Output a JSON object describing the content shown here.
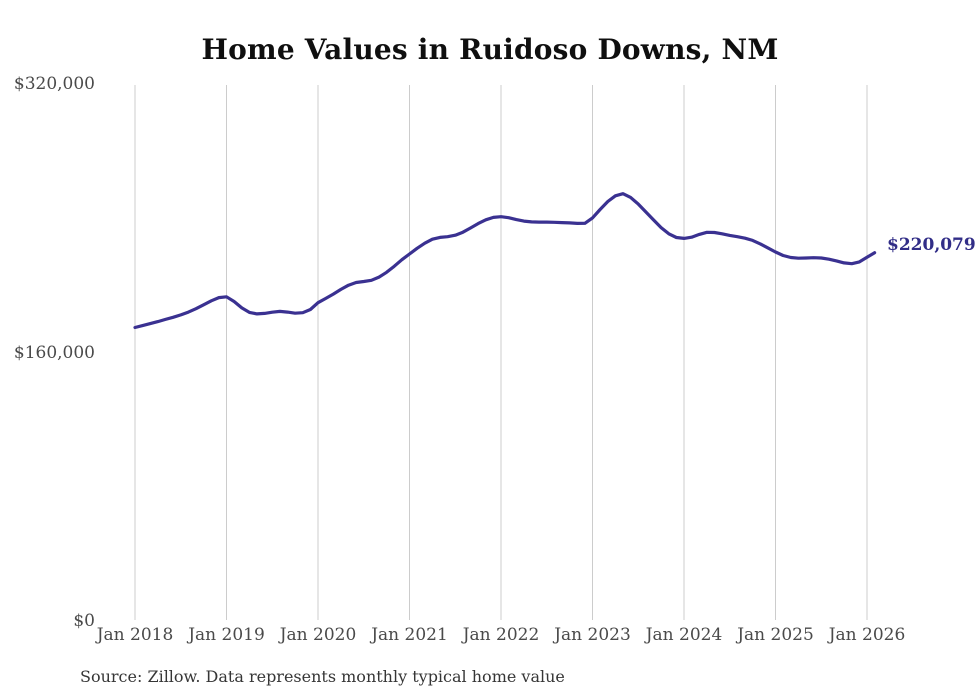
{
  "title": "Home Values in Ruidoso Downs, NM",
  "source_note": "Source: Zillow. Data represents monthly typical home value",
  "end_label": "$220,079",
  "colors": {
    "line": "#3a3191",
    "end_label": "#312d87",
    "gridline": "#cccccc",
    "title_text": "#0f0f0f",
    "axis_text": "#4a4a4a",
    "source_text": "#363636",
    "background": "#ffffff"
  },
  "chart_data": {
    "type": "line",
    "title": "Home Values in Ruidoso Downs, NM",
    "xlabel": "",
    "ylabel": "",
    "ylim": [
      0,
      320000
    ],
    "grid": "vertical-gridlines-only",
    "legend": "none",
    "y_tick_labels": [
      "$0",
      "$160,000",
      "$320,000"
    ],
    "y_tick_values": [
      0,
      160000,
      320000
    ],
    "x_tick_labels": [
      "Jan 2018",
      "Jan 2019",
      "Jan 2020",
      "Jan 2021",
      "Jan 2022",
      "Jan 2023",
      "Jan 2024",
      "Jan 2025",
      "Jan 2026"
    ],
    "series": [
      {
        "name": "Monthly typical home value",
        "frequency": "monthly",
        "start_month": "Jan 2018",
        "end_month": "Feb 2026",
        "final_value": 220079,
        "final_value_label": "$220,079",
        "values": [
          175500,
          176600,
          177800,
          179000,
          180300,
          181600,
          183000,
          184700,
          186700,
          189000,
          191400,
          193300,
          193800,
          191000,
          187200,
          184500,
          183600,
          183900,
          184600,
          185100,
          184700,
          184000,
          184300,
          186200,
          190300,
          192800,
          195400,
          198200,
          200700,
          202300,
          202900,
          203600,
          205500,
          208400,
          212000,
          215900,
          219300,
          222700,
          225700,
          228100,
          229200,
          229600,
          230500,
          232300,
          234800,
          237400,
          239700,
          241100,
          241500,
          240900,
          239800,
          238900,
          238400,
          238300,
          238300,
          238200,
          238000,
          237800,
          237500,
          237600,
          240800,
          245800,
          250600,
          254000,
          255200,
          253000,
          249000,
          244300,
          239600,
          235000,
          231300,
          229100,
          228600,
          229300,
          231000,
          232200,
          232100,
          231300,
          230400,
          229600,
          228700,
          227400,
          225300,
          222900,
          220500,
          218400,
          217200,
          216800,
          216900,
          217100,
          216900,
          216200,
          215200,
          214000,
          213500,
          214600,
          217300,
          220079
        ]
      }
    ]
  }
}
